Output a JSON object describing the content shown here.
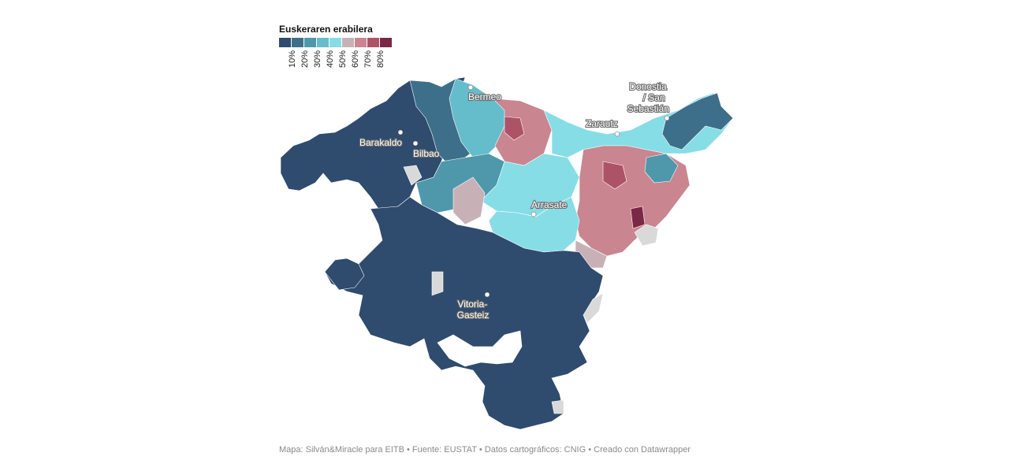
{
  "legend": {
    "title": "Euskeraren erabilera",
    "bins": [
      {
        "color": "#2f4b6e",
        "label": ""
      },
      {
        "color": "#3d6f8a",
        "label": "10%"
      },
      {
        "color": "#4f98ab",
        "label": "20%"
      },
      {
        "color": "#65bccb",
        "label": "30%"
      },
      {
        "color": "#86dde6",
        "label": "40%"
      },
      {
        "color": "#c8b1b6",
        "label": "50%"
      },
      {
        "color": "#c98590",
        "label": "60%"
      },
      {
        "color": "#ad5368",
        "label": "70%"
      },
      {
        "color": "#7a2846",
        "label": "80%"
      }
    ]
  },
  "cities": [
    {
      "name": "Bermeo"
    },
    {
      "name": "Barakaldo"
    },
    {
      "name": "Bilbao"
    },
    {
      "name": "Zarautz"
    },
    {
      "name": "Donostia / San Sebastián",
      "lines": [
        "Donostia",
        "/ San",
        "Sebastián"
      ]
    },
    {
      "name": "Arrasate"
    },
    {
      "name": "Vitoria-Gasteiz",
      "lines": [
        "Vitoria-",
        "Gasteiz"
      ]
    }
  ],
  "colors": {
    "no_data": "#d9d9d9",
    "boundary": "#ffffff"
  },
  "footer": {
    "credit": "Mapa: Silván&Miracle para EITB • Fuente: EUSTAT • Datos cartográficos: CNIG  • Creado con Datawrapper"
  }
}
